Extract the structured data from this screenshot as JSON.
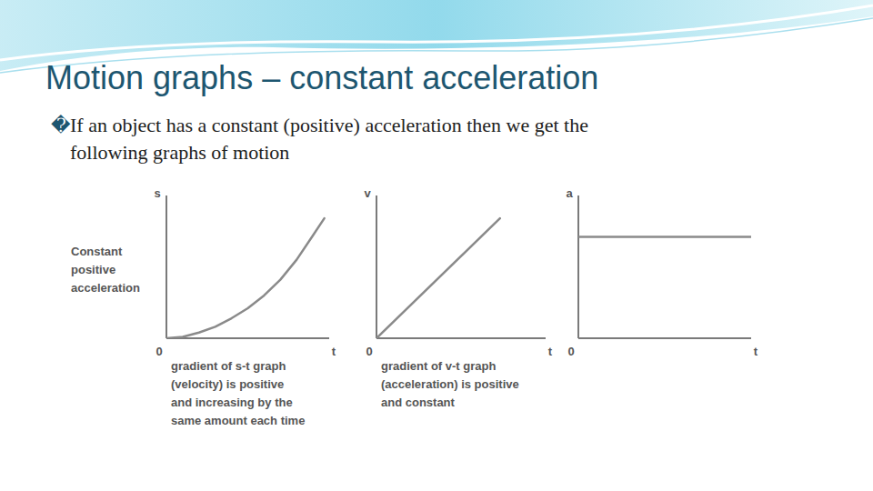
{
  "slide": {
    "title": "Motion graphs – constant acceleration",
    "bullet": "�",
    "text": [
      "If an object has a constant (positive) acceleration then we get the",
      "following graphs of motion"
    ]
  },
  "chart_data": [
    {
      "type": "line",
      "x": [
        0,
        1,
        2,
        3,
        4,
        5,
        6,
        7,
        8,
        9,
        9.7
      ],
      "values": [
        0,
        0.1,
        0.4,
        0.8,
        1.4,
        2.1,
        3.0,
        4.1,
        5.5,
        7.2,
        8.4
      ],
      "xlim": [
        0,
        10
      ],
      "ylim": [
        0,
        10
      ],
      "xticks": [
        0
      ],
      "tick_labels": "x",
      "x_label": "t",
      "y_label": "s",
      "color": "#8a8a8a",
      "annotation": [
        "Constant",
        "positive",
        "acceleration"
      ],
      "caption": [
        "gradient of s-t graph",
        "(velocity) is positive",
        "and increasing by the",
        "same amount each time"
      ]
    },
    {
      "type": "line",
      "x": [
        0,
        7.3
      ],
      "values": [
        0,
        8.4
      ],
      "xlim": [
        0,
        10
      ],
      "ylim": [
        0,
        10
      ],
      "xticks": [
        0
      ],
      "tick_labels": "x",
      "x_label": "t",
      "y_label": "v",
      "color": "#8a8a8a",
      "caption": [
        "gradient of v-t graph",
        "(acceleration) is positive",
        "and constant"
      ]
    },
    {
      "type": "line",
      "x": [
        0,
        10
      ],
      "values": [
        7.1,
        7.1
      ],
      "xlim": [
        0,
        10
      ],
      "ylim": [
        0,
        10
      ],
      "xticks": [
        0
      ],
      "tick_labels": "x",
      "x_label": "t",
      "y_label": "a",
      "color": "#8a8a8a"
    }
  ]
}
